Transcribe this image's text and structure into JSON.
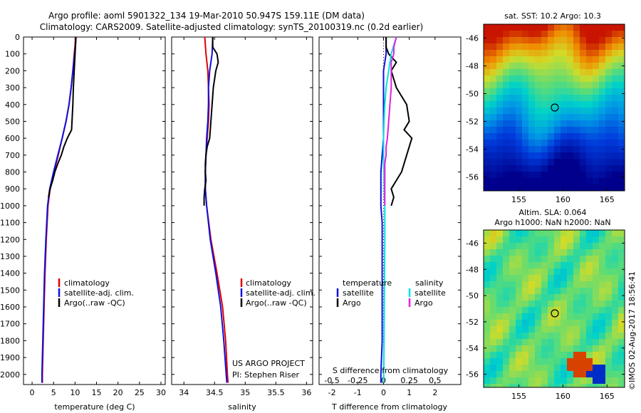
{
  "header": {
    "line1": "Argo profile: aoml 5901322_134 19-Mar-2010 50.947S 159.11E (DM data)",
    "line2": "Climatology: CARS2009. Satellite-adjusted climatology: synTS_20100319.nc (0.2d earlier)"
  },
  "colors": {
    "climatology": "#e00000",
    "satellite": "#1010e0",
    "argo": "#000000",
    "salinity_satellite": "#00e0e0",
    "salinity_argo": "#e020e0"
  },
  "footer": {
    "project": "US ARGO PROJECT",
    "pi": "PI: Stephen Riser",
    "stamp": "©IMOS 02-Aug-2017 18:56:41"
  },
  "depth_ticks": [
    "0",
    "100",
    "200",
    "300",
    "400",
    "500",
    "600",
    "700",
    "800",
    "900",
    "1000",
    "1100",
    "1200",
    "1300",
    "1400",
    "1500",
    "1600",
    "1700",
    "1800",
    "1900",
    "2000"
  ],
  "chart_data": [
    {
      "type": "line",
      "xlabel": "temperature (deg C)",
      "xlim": [
        -2,
        31
      ],
      "ylim": [
        0,
        2060
      ],
      "xticks": [
        "0",
        "5",
        "10",
        "15",
        "20",
        "25",
        "30"
      ],
      "legend": [
        "climatology",
        "satellite-adj. clim.",
        "Argo(..raw -QC)"
      ],
      "series": [
        {
          "name": "climatology",
          "depth": [
            0,
            50,
            100,
            200,
            300,
            400,
            500,
            600,
            700,
            800,
            900,
            1000,
            1200,
            1400,
            1600,
            1800,
            2000,
            2050
          ],
          "values": [
            10.1,
            10.0,
            9.8,
            9.5,
            9.1,
            8.6,
            7.9,
            7.0,
            6.1,
            5.1,
            4.2,
            3.7,
            3.3,
            3.0,
            2.8,
            2.6,
            2.4,
            2.4
          ]
        },
        {
          "name": "satellite-adj. clim.",
          "depth": [
            0,
            50,
            100,
            200,
            300,
            400,
            500,
            600,
            700,
            800,
            900,
            1000,
            1200,
            1400,
            1600,
            1800,
            2000,
            2050
          ],
          "values": [
            10.2,
            10.1,
            9.9,
            9.5,
            9.1,
            8.6,
            7.9,
            7.0,
            6.0,
            5.0,
            4.1,
            3.6,
            3.2,
            2.9,
            2.7,
            2.5,
            2.3,
            2.3
          ]
        },
        {
          "name": "Argo(..raw -QC)",
          "depth": [
            0,
            50,
            100,
            150,
            200,
            300,
            400,
            500,
            550,
            600,
            650,
            700,
            750,
            800,
            850,
            900,
            950
          ],
          "values": [
            10.2,
            10.1,
            10.0,
            9.9,
            9.8,
            9.6,
            9.5,
            9.3,
            9.2,
            8.2,
            7.4,
            6.8,
            6.0,
            5.3,
            4.8,
            4.2,
            3.8
          ]
        }
      ]
    },
    {
      "type": "line",
      "xlabel": "salinity",
      "xlim": [
        33.8,
        36.1
      ],
      "ylim": [
        0,
        2060
      ],
      "xticks": [
        "34",
        "34.5",
        "35",
        "35.5",
        "36"
      ],
      "legend": [
        "climatology",
        "satellite-adj. clim.",
        "Argo(..raw -QC)"
      ],
      "series": [
        {
          "name": "climatology",
          "depth": [
            0,
            100,
            200,
            300,
            400,
            500,
            600,
            700,
            800,
            900,
            1000,
            1200,
            1400,
            1600,
            1800,
            2000,
            2050
          ],
          "values": [
            34.34,
            34.36,
            34.39,
            34.4,
            34.41,
            34.4,
            34.38,
            34.36,
            34.35,
            34.35,
            34.37,
            34.44,
            34.54,
            34.63,
            34.68,
            34.71,
            34.72
          ]
        },
        {
          "name": "satellite-adj. clim.",
          "depth": [
            0,
            100,
            200,
            300,
            400,
            500,
            600,
            700,
            800,
            900,
            1000,
            1200,
            1400,
            1600,
            1800,
            2000,
            2050
          ],
          "values": [
            34.47,
            34.46,
            34.42,
            34.4,
            34.4,
            34.39,
            34.37,
            34.36,
            34.35,
            34.35,
            34.37,
            34.43,
            34.52,
            34.6,
            34.65,
            34.69,
            34.7
          ]
        },
        {
          "name": "Argo(..raw -QC)",
          "depth": [
            0,
            60,
            100,
            150,
            200,
            300,
            400,
            500,
            600,
            650,
            700,
            750,
            800,
            850,
            900,
            950,
            1000
          ],
          "values": [
            34.47,
            34.47,
            34.54,
            34.56,
            34.52,
            34.48,
            34.46,
            34.44,
            34.42,
            34.38,
            34.36,
            34.35,
            34.35,
            34.36,
            34.34,
            34.33,
            34.33
          ]
        }
      ]
    },
    {
      "type": "line",
      "xlabel": "T difference from climatology",
      "title": "S difference from climatology",
      "xlim": [
        -2.5,
        3.0
      ],
      "ylim": [
        0,
        2060
      ],
      "xticks": [
        "-2",
        "-1",
        "0",
        "1",
        "2"
      ],
      "top_xticks": [
        "-0.5",
        "-0.25",
        "0",
        "0.25",
        "0.5"
      ],
      "legend_headers": [
        "temperature",
        "salinity"
      ],
      "legend": [
        "satellite",
        "Argo",
        "satellite",
        "Argo"
      ],
      "series": [
        {
          "name": "satellite",
          "depth": [
            0,
            100,
            200,
            300,
            400,
            500,
            600,
            700,
            800,
            900,
            1000,
            1100,
            1200,
            1400,
            1600,
            1800,
            2000,
            2050
          ],
          "values": [
            0.1,
            0.1,
            0.0,
            0.0,
            0.0,
            0.0,
            0.0,
            -0.05,
            -0.1,
            -0.1,
            -0.1,
            -0.05,
            -0.05,
            -0.05,
            -0.05,
            -0.05,
            -0.1,
            -0.1
          ]
        },
        {
          "name": "Argo",
          "depth": [
            0,
            60,
            100,
            150,
            200,
            300,
            400,
            500,
            550,
            600,
            650,
            700,
            750,
            800,
            850,
            900,
            950,
            1000
          ],
          "values": [
            0.1,
            0.1,
            0.2,
            0.5,
            0.3,
            0.5,
            0.9,
            1.0,
            0.8,
            1.1,
            1.0,
            0.9,
            0.8,
            0.7,
            0.5,
            0.3,
            0.4,
            0.3
          ]
        },
        {
          "name": "salinity satellite",
          "depth": [
            0,
            50,
            100,
            200,
            300,
            400,
            500,
            600,
            700,
            800,
            900,
            1000,
            1200,
            1400,
            1600,
            1800,
            2000,
            2050
          ],
          "values": [
            0.5,
            0.4,
            0.3,
            0.2,
            0.1,
            0.05,
            0.02,
            0.0,
            0.0,
            0.02,
            0.03,
            0.05,
            0.05,
            0.04,
            0.03,
            0.02,
            0.01,
            0.01
          ]
        },
        {
          "name": "salinity Argo",
          "depth": [
            0,
            60,
            100,
            150,
            200,
            300,
            400,
            500,
            600,
            650,
            700,
            750,
            800,
            850,
            900,
            950,
            1000
          ],
          "values": [
            0.5,
            0.4,
            0.4,
            0.3,
            0.3,
            0.3,
            0.25,
            0.2,
            0.15,
            0.1,
            0.1,
            0.05,
            0.05,
            0.05,
            0.05,
            0.05,
            0.05
          ]
        }
      ]
    }
  ],
  "maps": [
    {
      "title": "sat. SST: 10.2  Argo: 10.3",
      "yticks": [
        "-46",
        "-48",
        "-50",
        "-52",
        "-54",
        "-56"
      ],
      "xticks": [
        "155",
        "160",
        "165"
      ],
      "palette": "sst"
    },
    {
      "title1": "Altim. SLA: 0.064",
      "title2": "Argo h1000: NaN h2000: NaN",
      "yticks": [
        "-46",
        "-48",
        "-50",
        "-52",
        "-54",
        "-56"
      ],
      "xticks": [
        "155",
        "160",
        "165"
      ],
      "palette": "sla"
    }
  ]
}
